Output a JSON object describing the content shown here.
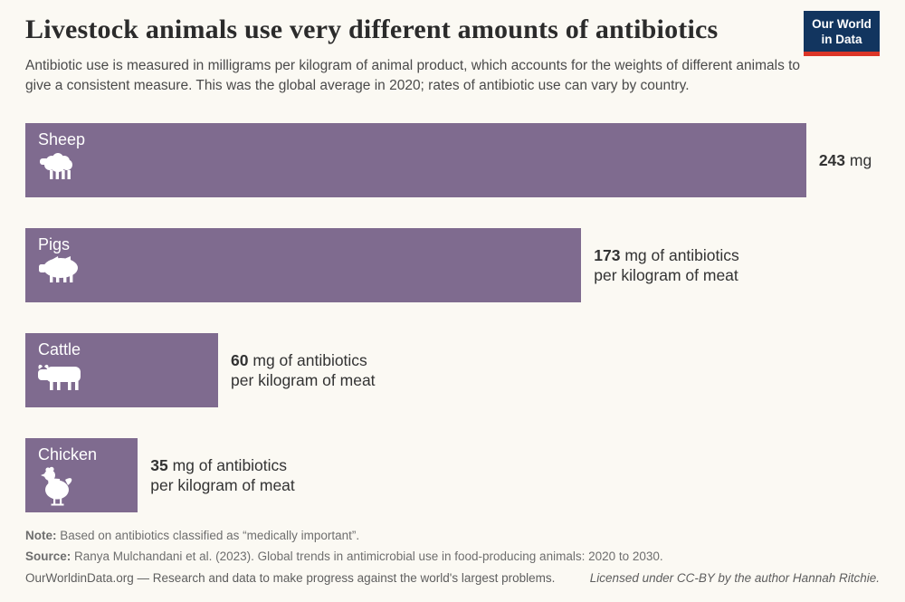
{
  "header": {
    "title": "Livestock animals use very different amounts of antibiotics",
    "subtitle": "Antibiotic use is measured in milligrams per kilogram of animal product, which accounts for the weights of different animals to give a consistent measure. This was the global average in 2020; rates of antibiotic use can vary by country.",
    "logo": {
      "line1": "Our World",
      "line2": "in Data"
    }
  },
  "chart_data": {
    "type": "bar",
    "orientation": "horizontal",
    "title": "Livestock animals use very different amounts of antibiotics",
    "categories": [
      "Sheep",
      "Pigs",
      "Cattle",
      "Chicken"
    ],
    "values": [
      243,
      173,
      60,
      35
    ],
    "unit": "mg of antibiotics per kilogram of meat",
    "xlim": [
      0,
      243
    ],
    "grid": false,
    "legend": "none",
    "bar_color": "#7f6b8f",
    "value_labels": [
      {
        "number": "243",
        "rest": " mg",
        "line2": ""
      },
      {
        "number": "173",
        "rest": " mg of antibiotics",
        "line2": "per kilogram of meat"
      },
      {
        "number": "60",
        "rest": " mg of antibiotics",
        "line2": "per kilogram of meat"
      },
      {
        "number": "35",
        "rest": " mg of antibiotics",
        "line2": "per kilogram of meat"
      }
    ]
  },
  "footer": {
    "note_label": "Note:",
    "note_text": " Based on antibiotics classified as “medically important”.",
    "source_label": "Source:",
    "source_text": " Ranya Mulchandani et al. (2023). Global trends in antimicrobial use in food-producing animals: 2020 to 2030.",
    "bottom_left": "OurWorldinData.org — Research and data to make progress against the world's largest problems.",
    "bottom_right": "Licensed under CC-BY by the author Hannah Ritchie."
  }
}
